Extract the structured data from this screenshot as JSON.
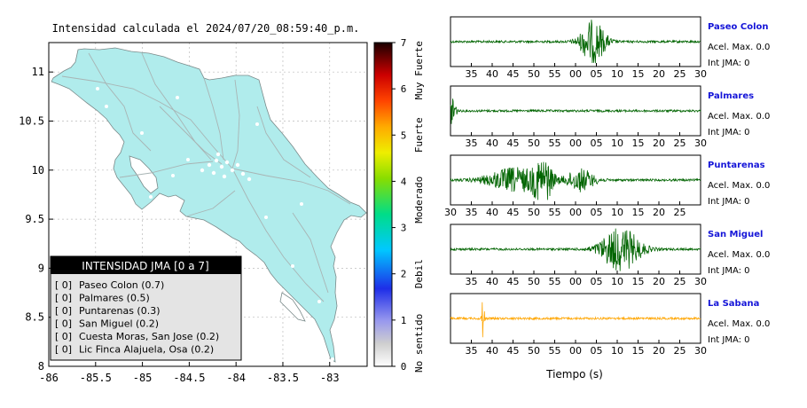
{
  "map": {
    "title": "Intensidad calculada el 2024/07/20_08:59:40_p.m.",
    "x_ticks": [
      "-86",
      "-85.5",
      "-85",
      "-84.5",
      "-84",
      "-83.5",
      "-83"
    ],
    "y_ticks": [
      "11",
      "10.5",
      "10",
      "9.5",
      "9",
      "8.5",
      "8"
    ],
    "xlim": [
      -86,
      -82.6
    ],
    "ylim": [
      8,
      11.3
    ],
    "land_color": "#b0ecec",
    "legend": {
      "title": "INTENSIDAD JMA [0 a 7]",
      "items": [
        {
          "value": "[ 0]",
          "label": "Paseo Colon (0.7)"
        },
        {
          "value": "[ 0]",
          "label": "Palmares (0.5)"
        },
        {
          "value": "[ 0]",
          "label": "Puntarenas (0.3)"
        },
        {
          "value": "[ 0]",
          "label": "San Miguel (0.2)"
        },
        {
          "value": "[ 0]",
          "label": "Cuesta Moras, San Jose (0.2)"
        },
        {
          "value": "[ 0]",
          "label": "Lic Finca Alajuela, Osa (0.2)"
        }
      ]
    }
  },
  "colorbar": {
    "ticks": [
      "0",
      "1",
      "2",
      "3",
      "4",
      "5",
      "6",
      "7"
    ],
    "categories": [
      "No sentido",
      "Debil",
      "Moderado",
      "Fuerte",
      "Muy Fuerte"
    ],
    "range": [
      0,
      7
    ]
  },
  "chart_data": [
    {
      "type": "line",
      "title": "Paseo Colon",
      "xlabel": "",
      "x_ticks": [
        "35",
        "40",
        "45",
        "50",
        "55",
        "00",
        "05",
        "10",
        "15",
        "20",
        "25",
        "30"
      ],
      "color": "#006400",
      "info": [
        "Acel. Max. 0.0",
        "Int JMA: 0"
      ],
      "bursts": [
        {
          "at": 0.57,
          "amp": 1.0,
          "width": 0.07
        }
      ]
    },
    {
      "type": "line",
      "title": "Palmares",
      "xlabel": "",
      "x_ticks": [
        "35",
        "40",
        "45",
        "50",
        "55",
        "00",
        "05",
        "10",
        "15",
        "20",
        "25",
        "30"
      ],
      "color": "#006400",
      "info": [
        "Acel. Max. 0.0",
        "Int JMA: 0"
      ],
      "bursts": [
        {
          "at": 0.01,
          "amp": 1.0,
          "width": 0.015
        }
      ]
    },
    {
      "type": "line",
      "title": "Puntarenas",
      "xlabel": "",
      "x_ticks": [
        "30",
        "35",
        "40",
        "45",
        "50",
        "55",
        "00",
        "05",
        "10",
        "15",
        "20",
        "25"
      ],
      "color": "#006400",
      "info": [
        "Acel. Max. 0.0",
        "Int JMA: 0"
      ],
      "bursts": [
        {
          "at": 0.26,
          "amp": 0.55,
          "width": 0.16
        },
        {
          "at": 0.37,
          "amp": 1.0,
          "width": 0.05
        },
        {
          "at": 0.52,
          "amp": 0.5,
          "width": 0.08
        }
      ]
    },
    {
      "type": "line",
      "title": "San Miguel",
      "xlabel": "",
      "x_ticks": [
        "35",
        "40",
        "45",
        "50",
        "55",
        "00",
        "05",
        "10",
        "15",
        "20",
        "25",
        "30"
      ],
      "color": "#006400",
      "info": [
        "Acel. Max. 0.0",
        "Int JMA: 0"
      ],
      "bursts": [
        {
          "at": 0.68,
          "amp": 1.0,
          "width": 0.11
        }
      ]
    },
    {
      "type": "line",
      "title": "La Sabana",
      "xlabel": "Tiempo (s)",
      "x_ticks": [
        "35",
        "40",
        "45",
        "50",
        "55",
        "00",
        "05",
        "10",
        "15",
        "20",
        "25",
        "30"
      ],
      "color": "#ffa500",
      "info": [
        "Acel. Max. 0.0",
        "Int JMA: 0"
      ],
      "bursts": [
        {
          "at": 0.13,
          "amp": 1.0,
          "width": 0.008
        }
      ]
    }
  ]
}
